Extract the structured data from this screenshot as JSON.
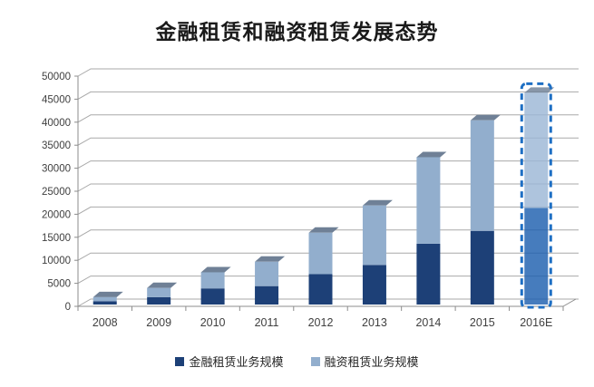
{
  "page": {
    "background": "#ffffff"
  },
  "chart_data": {
    "type": "bar",
    "stacked": true,
    "pseudo_3d": true,
    "title": "金融租赁和融资租赁发展态势",
    "categories": [
      "2008",
      "2009",
      "2010",
      "2011",
      "2012",
      "2013",
      "2014",
      "2015",
      "2016E"
    ],
    "series": [
      {
        "name": "金融租赁业务规模",
        "color": "#1d4077",
        "values": [
          700,
          1600,
          3500,
          4000,
          6600,
          8600,
          13200,
          16000,
          21000
        ]
      },
      {
        "name": "融资租赁业务规模",
        "color": "#92aecd",
        "values": [
          900,
          2000,
          3500,
          5300,
          9000,
          12900,
          18800,
          24000,
          25000
        ]
      }
    ],
    "totals": [
      1600,
      3600,
      7000,
      9300,
      15600,
      21500,
      32000,
      40000,
      46000
    ],
    "ylim": [
      0,
      50000
    ],
    "ytick_step": 5000,
    "ytick_labels": [
      "0",
      "5000",
      "10000",
      "15000",
      "20000",
      "25000",
      "30000",
      "35000",
      "40000",
      "45000",
      "50000"
    ],
    "xlabel": "",
    "ylabel": "",
    "grid": true,
    "legend_position": "bottom",
    "highlight": {
      "category": "2016E",
      "style": "dashed-outline",
      "border_color": "#1e6fc4",
      "dark_fill": "#1d5fae",
      "light_fill": "#9cb7d6"
    },
    "colors": {
      "bar_top_face": "#6f8096",
      "grid_line": "#a9a9a9",
      "axis_line": "#8c8c8c",
      "tick_text": "#404040",
      "title_text": "#1a1a1a",
      "legend_text": "#262626"
    }
  }
}
